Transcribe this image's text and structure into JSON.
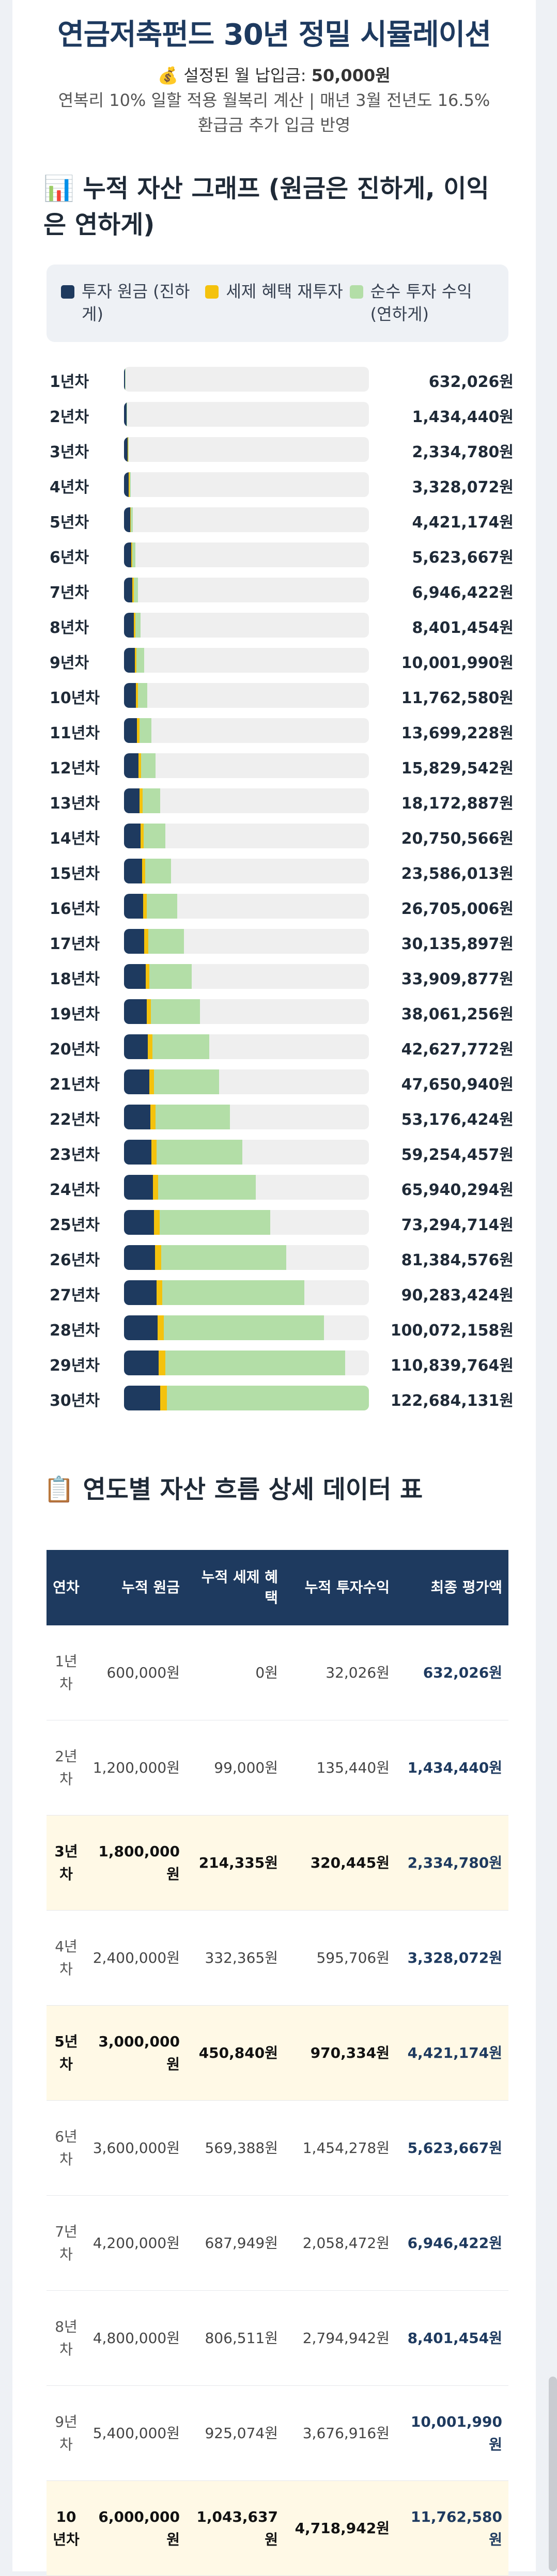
{
  "header": {
    "title": "연금저축펀드 30년 정밀 시뮬레이션",
    "monthly_icon": "💰",
    "monthly_label": "설정된 월 납입금:",
    "monthly_value": "50,000원",
    "calc_note": "연복리 10% 일할 적용 월복리 계산 | 매년 3월 전년도 16.5%",
    "refund_note": "환급금 추가 입금 반영"
  },
  "chart_section": {
    "icon": "📊",
    "title": "누적 자산 그래프 (원금은 진하게, 이익은 연하게)"
  },
  "colors": {
    "principal": "#1e3a5f",
    "tax": "#f4c20d",
    "investment": "#b3dea7",
    "header_bg": "#1e3a5f",
    "highlight_row": "#fff9e6"
  },
  "chart_data": {
    "type": "bar",
    "orientation": "horizontal",
    "stacked": true,
    "legend_position": "top",
    "legend": [
      "투자 원금 (진하게)",
      "세제 혜택 재투자",
      "순수 투자 수익 (연하게)"
    ],
    "categories": [
      "1년차",
      "2년차",
      "3년차",
      "4년차",
      "5년차",
      "6년차",
      "7년차",
      "8년차",
      "9년차",
      "10년차",
      "11년차",
      "12년차",
      "13년차",
      "14년차",
      "15년차",
      "16년차",
      "17년차",
      "18년차",
      "19년차",
      "20년차",
      "21년차",
      "22년차",
      "23년차",
      "24년차",
      "25년차",
      "26년차",
      "27년차",
      "28년차",
      "29년차",
      "30년차"
    ],
    "principal": [
      600000,
      1200000,
      1800000,
      2400000,
      3000000,
      3600000,
      4200000,
      4800000,
      5400000,
      6000000,
      6600000,
      7200000,
      7800000,
      8400000,
      9000000,
      9600000,
      10200000,
      10800000,
      11400000,
      12000000,
      12600000,
      13200000,
      13800000,
      14400000,
      15000000,
      15600000,
      16200000,
      16800000,
      17400000,
      18000000
    ],
    "tax": [
      0,
      99000,
      214335,
      332365,
      450840,
      569388,
      687949,
      806511,
      925074,
      1043637,
      1162200,
      1280764,
      1399327,
      1517890,
      1636453,
      1755016,
      1873580,
      1992143,
      2110706,
      2229269,
      2347832,
      2466395,
      2584959,
      2703522,
      2822085,
      2940648,
      3059211,
      3177774,
      3296338,
      3414901
    ],
    "totals": [
      632026,
      1434440,
      2334780,
      3328072,
      4421174,
      5623667,
      6946422,
      8401454,
      10001990,
      11762580,
      13699228,
      15829542,
      18172887,
      20750566,
      23586013,
      26705006,
      30135897,
      33909877,
      38061256,
      42627772,
      47650940,
      53176424,
      59254457,
      65940294,
      73294714,
      81384576,
      90283424,
      100072158,
      110839764,
      122684131
    ],
    "value_labels": [
      "632,026원",
      "1,434,440원",
      "2,334,780원",
      "3,328,072원",
      "4,421,174원",
      "5,623,667원",
      "6,946,422원",
      "8,401,454원",
      "10,001,990원",
      "11,762,580원",
      "13,699,228원",
      "15,829,542원",
      "18,172,887원",
      "20,750,566원",
      "23,586,013원",
      "26,705,006원",
      "30,135,897원",
      "33,909,877원",
      "38,061,256원",
      "42,627,772원",
      "47,650,940원",
      "53,176,424원",
      "59,254,457원",
      "65,940,294원",
      "73,294,714원",
      "81,384,576원",
      "90,283,424원",
      "100,072,158원",
      "110,839,764원",
      "122,684,131원"
    ],
    "xlim": [
      0,
      122684131
    ]
  },
  "table_section": {
    "icon": "📋",
    "title": "연도별 자산 흐름 상세 데이터 표",
    "headers": [
      "연차",
      "누적 원금",
      "누적 세제 혜택",
      "누적 투자수익",
      "최종 평가액"
    ],
    "rows": [
      {
        "year": "1년차",
        "principal": "600,000원",
        "tax": "0원",
        "profit": "32,026원",
        "final": "632,026원",
        "hl": false
      },
      {
        "year": "2년차",
        "principal": "1,200,000원",
        "tax": "99,000원",
        "profit": "135,440원",
        "final": "1,434,440원",
        "hl": false
      },
      {
        "year": "3년차",
        "principal": "1,800,000원",
        "tax": "214,335원",
        "profit": "320,445원",
        "final": "2,334,780원",
        "hl": true
      },
      {
        "year": "4년차",
        "principal": "2,400,000원",
        "tax": "332,365원",
        "profit": "595,706원",
        "final": "3,328,072원",
        "hl": false
      },
      {
        "year": "5년차",
        "principal": "3,000,000원",
        "tax": "450,840원",
        "profit": "970,334원",
        "final": "4,421,174원",
        "hl": true
      },
      {
        "year": "6년차",
        "principal": "3,600,000원",
        "tax": "569,388원",
        "profit": "1,454,278원",
        "final": "5,623,667원",
        "hl": false
      },
      {
        "year": "7년차",
        "principal": "4,200,000원",
        "tax": "687,949원",
        "profit": "2,058,472원",
        "final": "6,946,422원",
        "hl": false
      },
      {
        "year": "8년차",
        "principal": "4,800,000원",
        "tax": "806,511원",
        "profit": "2,794,942원",
        "final": "8,401,454원",
        "hl": false
      },
      {
        "year": "9년차",
        "principal": "5,400,000원",
        "tax": "925,074원",
        "profit": "3,676,916원",
        "final": "10,001,990원",
        "hl": false
      },
      {
        "year": "10년차",
        "principal": "6,000,000원",
        "tax": "1,043,637원",
        "profit": "4,718,942원",
        "final": "11,762,580원",
        "hl": true
      }
    ]
  }
}
